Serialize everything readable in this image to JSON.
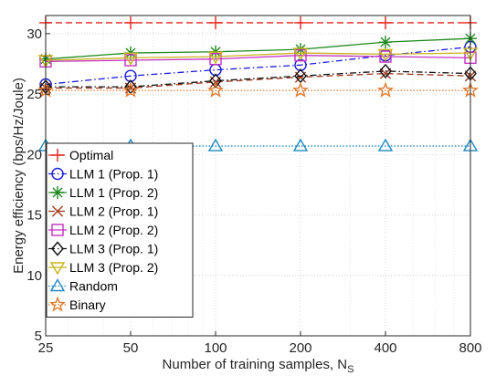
{
  "chart_data": {
    "type": "line",
    "xlabel": "Number of training samples, N",
    "xlabel_sub": "S",
    "ylabel": "Energy efficiency (bps/Hz/Joule)",
    "x": [
      25,
      50,
      100,
      200,
      400,
      800
    ],
    "x_tick_labels": [
      "25",
      "50",
      "100",
      "200",
      "400",
      "800"
    ],
    "xlim": [
      25,
      800
    ],
    "x_scale": "log",
    "ylim": [
      5,
      31.5
    ],
    "y_ticks": [
      5,
      10,
      15,
      20,
      25,
      30
    ],
    "y_tick_labels": [
      "5",
      "10",
      "15",
      "20",
      "25",
      "30"
    ],
    "grid": true,
    "legend_position": "lower-left",
    "series": [
      {
        "name": "Optimal",
        "values": [
          30.9,
          30.9,
          30.9,
          30.9,
          30.9,
          30.9
        ],
        "color": "#e8231a",
        "marker": "plus",
        "dash": "dashed"
      },
      {
        "name": "LLM 1 (Prop. 1)",
        "values": [
          25.8,
          26.5,
          27.0,
          27.4,
          28.2,
          28.9
        ],
        "color": "#1a1adb",
        "marker": "circle",
        "dash": "dashdot"
      },
      {
        "name": "LLM 1 (Prop. 2)",
        "values": [
          27.9,
          28.4,
          28.5,
          28.7,
          29.3,
          29.6
        ],
        "color": "#1e8a1e",
        "marker": "asterisk",
        "dash": "solid"
      },
      {
        "name": "LLM 2 (Prop. 1)",
        "values": [
          25.5,
          25.5,
          26.0,
          26.4,
          26.7,
          26.5
        ],
        "color": "#a0391e",
        "marker": "x",
        "dash": "dashed"
      },
      {
        "name": "LLM 2 (Prop. 2)",
        "values": [
          27.7,
          27.8,
          27.9,
          28.2,
          28.1,
          28.0
        ],
        "color": "#c232c2",
        "marker": "square",
        "dash": "solid"
      },
      {
        "name": "LLM 3 (Prop. 1)",
        "values": [
          25.6,
          25.6,
          26.1,
          26.5,
          26.9,
          26.7
        ],
        "color": "#111111",
        "marker": "diamond",
        "dash": "dashdot"
      },
      {
        "name": "LLM 3 (Prop. 2)",
        "values": [
          27.8,
          28.0,
          28.1,
          28.4,
          28.3,
          28.4
        ],
        "color": "#c9b318",
        "marker": "triangle-down",
        "dash": "solid"
      },
      {
        "name": "Random",
        "values": [
          20.7,
          20.7,
          20.7,
          20.7,
          20.7,
          20.7
        ],
        "color": "#1e8ac2",
        "marker": "triangle-up",
        "dash": "dotted"
      },
      {
        "name": "Binary",
        "values": [
          25.3,
          25.3,
          25.3,
          25.3,
          25.3,
          25.3
        ],
        "color": "#e07a2e",
        "marker": "star",
        "dash": "dotted"
      }
    ]
  }
}
